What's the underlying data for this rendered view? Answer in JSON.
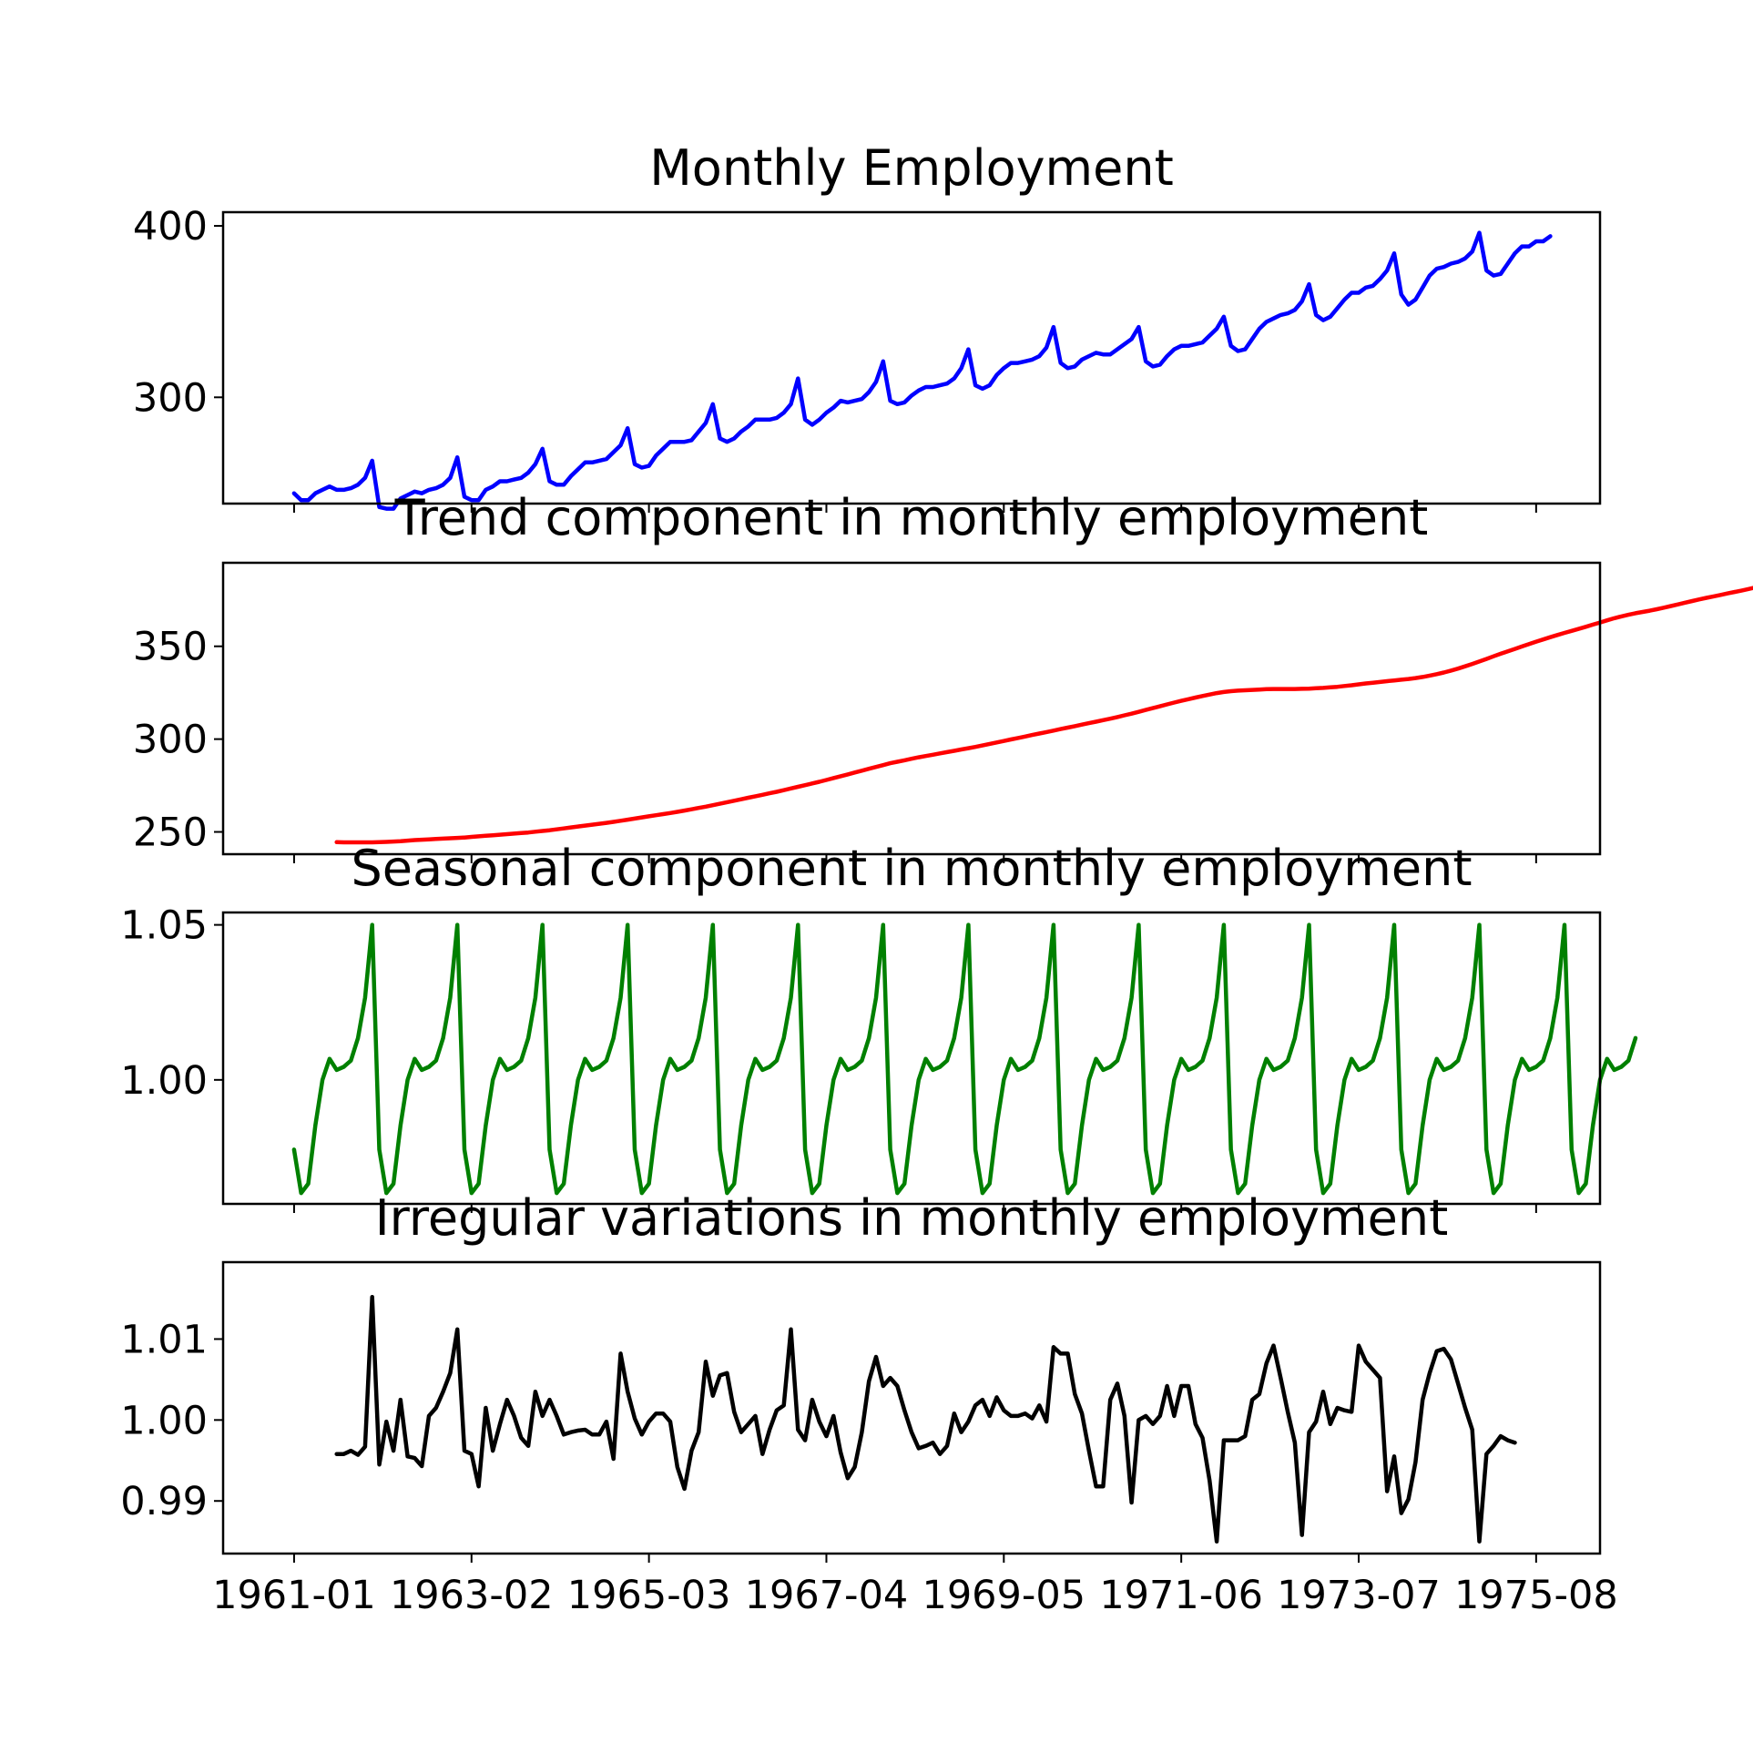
{
  "chart_data": [
    {
      "type": "line",
      "title": "Monthly Employment",
      "color": "#0000ff",
      "x_start": "1961-01",
      "ylim": [
        238,
        408
      ],
      "yticks": [
        300,
        400
      ],
      "ytick_labels": [
        "300",
        "400"
      ],
      "series": [
        {
          "values": [
            244,
            240,
            240,
            244,
            246,
            248,
            246,
            246,
            247,
            249,
            253,
            263,
            236,
            235,
            235,
            241,
            243,
            245,
            244,
            246,
            247,
            249,
            253,
            265,
            242,
            240,
            240,
            246,
            248,
            251,
            251,
            252,
            253,
            256,
            261,
            270,
            251,
            249,
            249,
            254,
            258,
            262,
            262,
            263,
            264,
            268,
            272,
            282,
            261,
            259,
            260,
            266,
            270,
            274,
            274,
            274,
            275,
            280,
            285,
            296,
            276,
            274,
            276,
            280,
            283,
            287,
            287,
            287,
            288,
            291,
            296,
            311,
            287,
            284,
            287,
            291,
            294,
            298,
            297,
            298,
            299,
            303,
            309,
            321,
            298,
            296,
            297,
            301,
            304,
            306,
            306,
            307,
            308,
            311,
            317,
            328,
            307,
            305,
            307,
            313,
            317,
            320,
            320,
            321,
            322,
            324,
            329,
            341,
            320,
            317,
            318,
            322,
            324,
            326,
            325,
            325,
            328,
            331,
            334,
            341,
            321,
            318,
            319,
            324,
            328,
            330,
            330,
            331,
            332,
            336,
            340,
            347,
            330,
            327,
            328,
            334,
            340,
            344,
            346,
            348,
            349,
            351,
            356,
            366,
            348,
            345,
            347,
            352,
            357,
            361,
            361,
            364,
            365,
            369,
            374,
            384,
            360,
            354,
            357,
            364,
            371,
            375,
            376,
            378,
            379,
            381,
            385,
            396,
            374,
            371,
            372,
            378,
            384,
            388,
            388,
            391,
            391,
            394
          ]
        }
      ]
    },
    {
      "type": "line",
      "title": "Trend component in monthly employment",
      "color": "#ff0000",
      "x_start": "1961-07",
      "ylim": [
        238,
        395
      ],
      "yticks": [
        250,
        300,
        350
      ],
      "ytick_labels": [
        "250",
        "300",
        "350"
      ],
      "series": [
        {
          "values": [
            244.5,
            244.4,
            244.4,
            244.4,
            244.4,
            244.4,
            244.5,
            244.6,
            244.8,
            245,
            245.3,
            245.6,
            245.8,
            246.0,
            246.2,
            246.4,
            246.6,
            246.8,
            247.0,
            247.3,
            247.6,
            247.9,
            248.2,
            248.5,
            248.8,
            249.1,
            249.4,
            249.7,
            250.1,
            250.5,
            250.9,
            251.4,
            251.9,
            252.4,
            252.9,
            253.4,
            253.9,
            254.4,
            254.9,
            255.4,
            256.0,
            256.6,
            257.2,
            257.8,
            258.4,
            259.0,
            259.6,
            260.2,
            260.8,
            261.5,
            262.2,
            262.9,
            263.6,
            264.4,
            265.2,
            266.0,
            266.8,
            267.6,
            268.4,
            269.2,
            270.0,
            270.8,
            271.6,
            272.5,
            273.4,
            274.3,
            275.2,
            276.1,
            277.0,
            278.0,
            279.0,
            280.0,
            281.0,
            282.0,
            283.0,
            284.0,
            285.0,
            286.0,
            287.0,
            287.8,
            288.6,
            289.4,
            290.2,
            290.9,
            291.6,
            292.3,
            293.0,
            293.7,
            294.4,
            295.1,
            295.8,
            296.6,
            297.4,
            298.2,
            299.0,
            299.8,
            300.6,
            301.4,
            302.2,
            303.0,
            303.8,
            304.6,
            305.4,
            306.2,
            307.0,
            307.8,
            308.6,
            309.4,
            310.2,
            311.0,
            311.9,
            312.8,
            313.7,
            314.7,
            315.7,
            316.7,
            317.7,
            318.7,
            319.7,
            320.6,
            321.5,
            322.4,
            323.2,
            324.0,
            324.8,
            325.4,
            325.8,
            326.1,
            326.3,
            326.5,
            326.7,
            326.9,
            327.0,
            327.0,
            327.0,
            327.0,
            327.1,
            327.2,
            327.4,
            327.6,
            327.9,
            328.2,
            328.6,
            329.0,
            329.5,
            330.0,
            330.4,
            330.8,
            331.2,
            331.6,
            332.0,
            332.4,
            332.9,
            333.5,
            334.2,
            335.0,
            335.9,
            336.9,
            338.0,
            339.2,
            340.5,
            341.8,
            343.2,
            344.6,
            346.0,
            347.3,
            348.6,
            349.9,
            351.2,
            352.5,
            353.7,
            354.9,
            356.1,
            357.2,
            358.3,
            359.4,
            360.5,
            361.7,
            362.8,
            364.0,
            365.1,
            366.1,
            367.0,
            367.8,
            368.5,
            369.2,
            370.0,
            370.8,
            371.7,
            372.6,
            373.5,
            374.4,
            375.3,
            376.1,
            376.9,
            377.7,
            378.5,
            379.3,
            380.1,
            380.9,
            381.8,
            382.7,
            383.6,
            384.4,
            385.2,
            386.0,
            386.8,
            387.5
          ]
        }
      ]
    },
    {
      "type": "line",
      "title": "Seasonal component in monthly employment",
      "color": "#008000",
      "x_start": "1961-01",
      "ylim": [
        0.96,
        1.054
      ],
      "yticks": [
        1.0,
        1.05
      ],
      "ytick_labels": [
        "1.00",
        "1.05"
      ],
      "series": [
        {
          "values": [
            0.9775,
            0.9635,
            0.9665,
            0.9853,
            1,
            1.0068,
            1.0032,
            1.0042,
            1.0062,
            1.0135,
            1.0265,
            1.05,
            0.9775,
            0.9635,
            0.9665,
            0.9853,
            1,
            1.0068,
            1.0032,
            1.0042,
            1.0062,
            1.0135,
            1.0265,
            1.05,
            0.9775,
            0.9635,
            0.9665,
            0.9853,
            1,
            1.0068,
            1.0032,
            1.0042,
            1.0062,
            1.0135,
            1.0265,
            1.05,
            0.9775,
            0.9635,
            0.9665,
            0.9853,
            1,
            1.0068,
            1.0032,
            1.0042,
            1.0062,
            1.0135,
            1.0265,
            1.05,
            0.9775,
            0.9635,
            0.9665,
            0.9853,
            1,
            1.0068,
            1.0032,
            1.0042,
            1.0062,
            1.0135,
            1.0265,
            1.05,
            0.9775,
            0.9635,
            0.9665,
            0.9853,
            1,
            1.0068,
            1.0032,
            1.0042,
            1.0062,
            1.0135,
            1.0265,
            1.05,
            0.9775,
            0.9635,
            0.9665,
            0.9853,
            1,
            1.0068,
            1.0032,
            1.0042,
            1.0062,
            1.0135,
            1.0265,
            1.05,
            0.9775,
            0.9635,
            0.9665,
            0.9853,
            1,
            1.0068,
            1.0032,
            1.0042,
            1.0062,
            1.0135,
            1.0265,
            1.05,
            0.9775,
            0.9635,
            0.9665,
            0.9853,
            1,
            1.0068,
            1.0032,
            1.0042,
            1.0062,
            1.0135,
            1.0265,
            1.05,
            0.9775,
            0.9635,
            0.9665,
            0.9853,
            1,
            1.0068,
            1.0032,
            1.0042,
            1.0062,
            1.0135,
            1.0265,
            1.05,
            0.9775,
            0.9635,
            0.9665,
            0.9853,
            1,
            1.0068,
            1.0032,
            1.0042,
            1.0062,
            1.0135,
            1.0265,
            1.05,
            0.9775,
            0.9635,
            0.9665,
            0.9853,
            1,
            1.0068,
            1.0032,
            1.0042,
            1.0062,
            1.0135,
            1.0265,
            1.05,
            0.9775,
            0.9635,
            0.9665,
            0.9853,
            1,
            1.0068,
            1.0032,
            1.0042,
            1.0062,
            1.0135,
            1.0265,
            1.05,
            0.9775,
            0.9635,
            0.9665,
            0.9853,
            1,
            1.0068,
            1.0032,
            1.0042,
            1.0062,
            1.0135,
            1.0265,
            1.05,
            0.9775,
            0.9635,
            0.9665,
            0.9853,
            1,
            1.0068,
            1.0032,
            1.0042,
            1.0062,
            1.0135,
            1.0265,
            1.05,
            0.9775,
            0.9635,
            0.9665,
            0.9853,
            1,
            1.0068,
            1.0032,
            1.0042,
            1.0062,
            1.0135
          ]
        }
      ]
    },
    {
      "type": "line",
      "title": "Irregular variations in monthly employment",
      "color": "#000000",
      "x_start": "1961-07",
      "ylim": [
        0.9835,
        1.0195
      ],
      "yticks": [
        0.99,
        1.0,
        1.01
      ],
      "ytick_labels": [
        "0.99",
        "1.00",
        "1.01"
      ],
      "series": [
        {
          "values": [
            0.9958,
            0.9958,
            0.9962,
            0.9957,
            0.9967,
            1.0152,
            0.9945,
            0.9998,
            0.9962,
            1.0025,
            0.9955,
            0.9953,
            0.9943,
            1.0005,
            1.0015,
            1.0035,
            1.0058,
            1.0112,
            0.9962,
            0.9958,
            0.9918,
            1.0015,
            0.9962,
            0.9995,
            1.0025,
            1.0005,
            0.9978,
            0.9968,
            1.0035,
            1.0005,
            1.0025,
            1.0005,
            0.9982,
            0.9985,
            0.9987,
            0.9988,
            0.9982,
            0.9982,
            0.9998,
            0.9952,
            1.0082,
            1.0035,
            1.0002,
            0.9982,
            0.9998,
            1.0008,
            1.0008,
            0.9998,
            0.9942,
            0.9915,
            0.9962,
            0.9985,
            1.0072,
            1.003,
            1.0055,
            1.0058,
            1.001,
            0.9985,
            0.9995,
            1.0005,
            0.9958,
            0.9988,
            1.0012,
            1.0018,
            1.0112,
            0.9988,
            0.9975,
            1.0025,
            0.9998,
            0.998,
            1.0005,
            0.996,
            0.9928,
            0.9942,
            0.9985,
            1.0048,
            1.0078,
            1.0042,
            1.0052,
            1.0042,
            1.0012,
            0.9985,
            0.9965,
            0.9968,
            0.9972,
            0.9958,
            0.9968,
            1.0008,
            0.9985,
            0.9998,
            1.0018,
            1.0025,
            1.0005,
            1.0028,
            1.0012,
            1.0005,
            1.0005,
            1.0008,
            1.0002,
            1.0018,
            0.9998,
            1.009,
            1.0082,
            1.0082,
            1.0032,
            1.0008,
            0.9962,
            0.9918,
            0.9918,
            1.0025,
            1.0045,
            1.0005,
            0.9898,
            1.0,
            1.0005,
            0.9995,
            1.0005,
            1.0042,
            1.0005,
            1.0042,
            1.0042,
            0.9995,
            0.9978,
            0.9925,
            0.985,
            0.9975,
            0.9975,
            0.9975,
            0.998,
            1.0025,
            1.0032,
            1.007,
            1.0092,
            1.0052,
            1.001,
            0.9972,
            0.9858,
            0.9985,
            0.9998,
            1.0035,
            0.9995,
            1.0015,
            1.0012,
            1.001,
            1.0092,
            1.0072,
            1.0062,
            1.0052,
            0.9912,
            0.9955,
            0.9885,
            0.9902,
            0.9948,
            1.0025,
            1.0058,
            1.0085,
            1.0088,
            1.0075,
            1.0045,
            1.0015,
            0.9988,
            0.985,
            0.9958,
            0.9968,
            0.998,
            0.9975,
            0.9972
          ]
        }
      ]
    }
  ],
  "x_axis": {
    "tick_dates": [
      "1961-01",
      "1963-02",
      "1965-03",
      "1967-04",
      "1969-05",
      "1971-06",
      "1973-07",
      "1975-08"
    ],
    "tick_labels": [
      "1961-01",
      "1963-02",
      "1965-03",
      "1967-04",
      "1969-05",
      "1971-06",
      "1973-07",
      "1975-08"
    ],
    "range": [
      "1960-03",
      "1976-05"
    ]
  }
}
